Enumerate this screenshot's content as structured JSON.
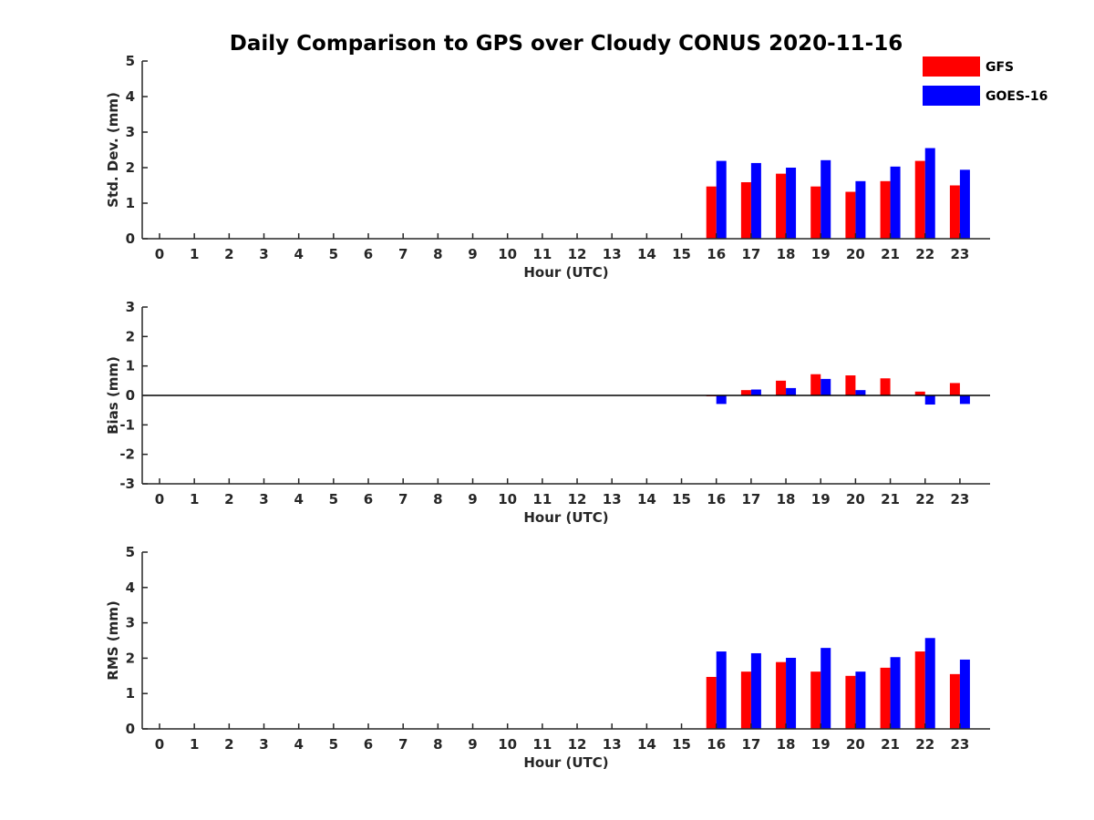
{
  "title": "Daily Comparison to GPS over Cloudy CONUS 2020-11-16",
  "colors": {
    "GFS": "#ff0000",
    "GOES-16": "#0000ff",
    "axis": "#262626"
  },
  "chart_data": [
    {
      "type": "bar",
      "categories": [
        "0",
        "1",
        "2",
        "3",
        "4",
        "5",
        "6",
        "7",
        "8",
        "9",
        "10",
        "11",
        "12",
        "13",
        "14",
        "15",
        "16",
        "17",
        "18",
        "19",
        "20",
        "21",
        "22",
        "23"
      ],
      "xlabel": "Hour (UTC)",
      "ylabel": "Std. Dev. (mm)",
      "ylim": [
        0,
        5
      ],
      "yticks": [
        "0",
        "1",
        "2",
        "3",
        "4",
        "5"
      ],
      "legend": "top-right",
      "series": [
        {
          "name": "GFS",
          "values": [
            null,
            null,
            null,
            null,
            null,
            null,
            null,
            null,
            null,
            null,
            null,
            null,
            null,
            null,
            null,
            null,
            1.47,
            1.59,
            1.83,
            1.47,
            1.32,
            1.62,
            2.19,
            1.5
          ]
        },
        {
          "name": "GOES-16",
          "values": [
            null,
            null,
            null,
            null,
            null,
            null,
            null,
            null,
            null,
            null,
            null,
            null,
            null,
            null,
            null,
            null,
            2.19,
            2.13,
            2.0,
            2.21,
            1.62,
            2.03,
            2.55,
            1.94
          ]
        }
      ]
    },
    {
      "type": "bar",
      "categories": [
        "0",
        "1",
        "2",
        "3",
        "4",
        "5",
        "6",
        "7",
        "8",
        "9",
        "10",
        "11",
        "12",
        "13",
        "14",
        "15",
        "16",
        "17",
        "18",
        "19",
        "20",
        "21",
        "22",
        "23"
      ],
      "xlabel": "Hour (UTC)",
      "ylabel": "Bias (mm)",
      "ylim": [
        -3,
        3
      ],
      "yticks": [
        "-3",
        "-2",
        "-1",
        "0",
        "1",
        "2",
        "3"
      ],
      "series": [
        {
          "name": "GFS",
          "values": [
            null,
            null,
            null,
            null,
            null,
            null,
            null,
            null,
            null,
            null,
            null,
            null,
            null,
            null,
            null,
            null,
            -0.03,
            0.18,
            0.5,
            0.72,
            0.68,
            0.58,
            0.13,
            0.42
          ]
        },
        {
          "name": "GOES-16",
          "values": [
            null,
            null,
            null,
            null,
            null,
            null,
            null,
            null,
            null,
            null,
            null,
            null,
            null,
            null,
            null,
            null,
            -0.29,
            0.2,
            0.25,
            0.56,
            0.18,
            0.0,
            -0.31,
            -0.29
          ]
        }
      ]
    },
    {
      "type": "bar",
      "categories": [
        "0",
        "1",
        "2",
        "3",
        "4",
        "5",
        "6",
        "7",
        "8",
        "9",
        "10",
        "11",
        "12",
        "13",
        "14",
        "15",
        "16",
        "17",
        "18",
        "19",
        "20",
        "21",
        "22",
        "23"
      ],
      "xlabel": "Hour (UTC)",
      "ylabel": "RMS (mm)",
      "ylim": [
        0,
        5
      ],
      "yticks": [
        "0",
        "1",
        "2",
        "3",
        "4",
        "5"
      ],
      "series": [
        {
          "name": "GFS",
          "values": [
            null,
            null,
            null,
            null,
            null,
            null,
            null,
            null,
            null,
            null,
            null,
            null,
            null,
            null,
            null,
            null,
            1.47,
            1.62,
            1.89,
            1.62,
            1.5,
            1.73,
            2.19,
            1.55
          ]
        },
        {
          "name": "GOES-16",
          "values": [
            null,
            null,
            null,
            null,
            null,
            null,
            null,
            null,
            null,
            null,
            null,
            null,
            null,
            null,
            null,
            null,
            2.19,
            2.14,
            2.01,
            2.29,
            1.62,
            2.03,
            2.57,
            1.96
          ]
        }
      ]
    }
  ]
}
